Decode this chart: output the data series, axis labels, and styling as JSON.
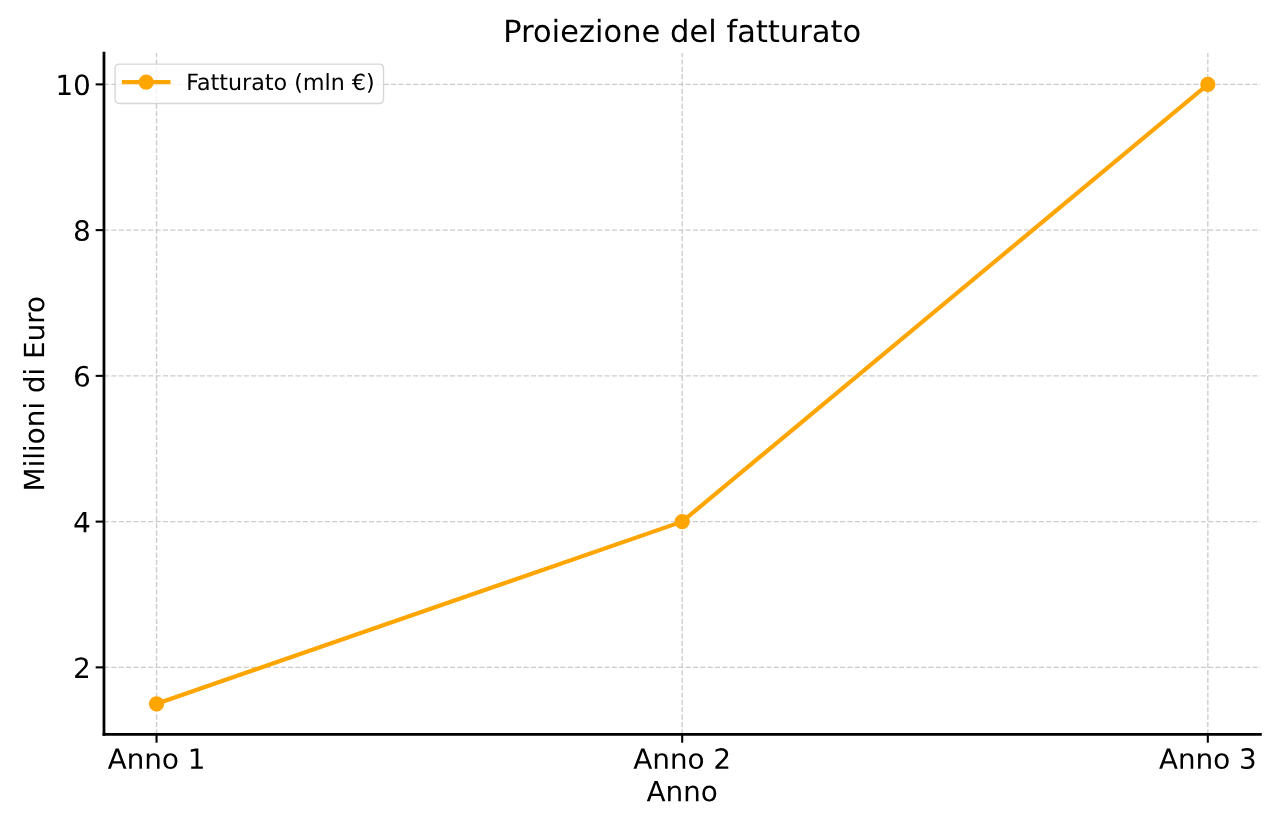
{
  "chart_data": {
    "type": "line",
    "title": "Proiezione del fatturato",
    "xlabel": "Anno",
    "ylabel": "Milioni di Euro",
    "categories": [
      "Anno 1",
      "Anno 2",
      "Anno 3"
    ],
    "series": [
      {
        "name": "Fatturato (mln €)",
        "color": "#ffa500",
        "values": [
          1.5,
          4,
          10
        ]
      }
    ],
    "ylim": [
      1.08,
      10.43
    ],
    "yticks": [
      2,
      4,
      6,
      8,
      10
    ],
    "grid": true,
    "legend": "top left",
    "marker": "circle",
    "line_style": "solid"
  }
}
